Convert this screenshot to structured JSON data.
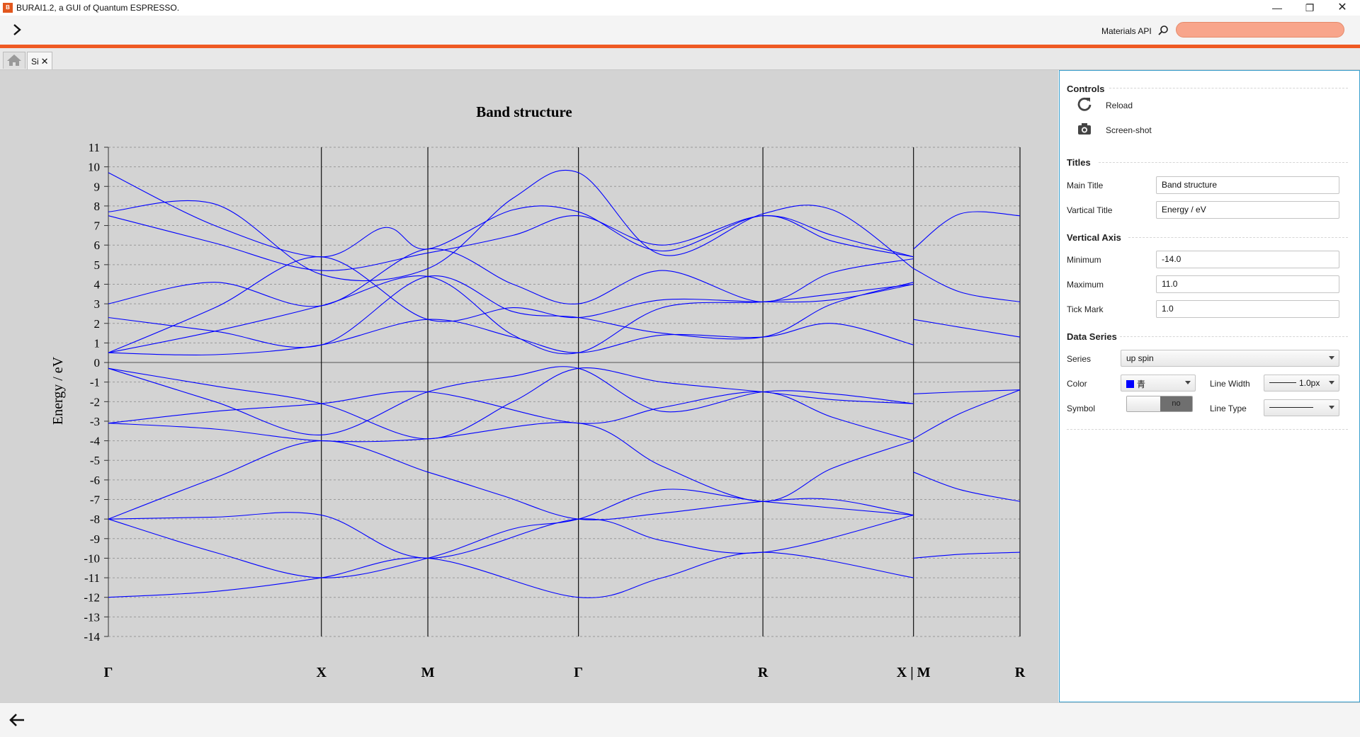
{
  "window": {
    "icon_text": "B",
    "title": "BURAI1.2, a GUI of Quantum ESPRESSO.",
    "minimize_symbol": "—",
    "maximize_symbol": "❐",
    "close_symbol": "✕"
  },
  "toolbar": {
    "materials_api_label": "Materials API",
    "search_value": ""
  },
  "tabs": {
    "project_tab_label": "Si",
    "close_symbol": "✕"
  },
  "controls": {
    "section_controls": "Controls",
    "reload_label": "Reload",
    "screenshot_label": "Screen-shot",
    "section_titles": "Titles",
    "main_title_label": "Main Title",
    "main_title_value": "Band structure",
    "vertical_title_label": "Vartical Title",
    "vertical_title_value": "Energy / eV",
    "section_vertical_axis": "Vertical Axis",
    "minimum_label": "Minimum",
    "minimum_value": "-14.0",
    "maximum_label": "Maximum",
    "maximum_value": "11.0",
    "tick_label": "Tick Mark",
    "tick_value": "1.0",
    "section_data_series": "Data Series",
    "series_label": "Series",
    "series_value": "up spin",
    "color_label": "Color",
    "color_value": "青",
    "color_hex": "#0000ff",
    "line_width_label": "Line Width",
    "line_width_value": "1.0px",
    "symbol_label": "Symbol",
    "symbol_value": "no",
    "line_type_label": "Line Type"
  },
  "chart_data": {
    "type": "line",
    "title": "Band structure",
    "ylabel": "Energy / eV",
    "xlabel": "",
    "ylim": [
      -14,
      11
    ],
    "ytick_step": 1,
    "grid": "horizontal dashed",
    "line_color": "#0000ff",
    "kpoints": [
      {
        "label": "Γ",
        "x": 0.0
      },
      {
        "label": "X",
        "x": 1.0
      },
      {
        "label": "M",
        "x": 1.5
      },
      {
        "label": "Γ",
        "x": 2.2071
      },
      {
        "label": "R",
        "x": 3.0731
      },
      {
        "label": "X | M",
        "x": 3.7802
      },
      {
        "label": "R",
        "x": 4.2802
      }
    ],
    "break_after_index": 5,
    "bands": [
      [
        [
          0,
          -12
        ],
        [
          0.5,
          -11.7
        ],
        [
          1,
          -11
        ],
        [
          1.5,
          -10
        ],
        [
          2.2071,
          -12
        ],
        [
          2.6,
          -11
        ],
        [
          3.0731,
          -9.7
        ],
        [
          3.78,
          -11
        ]
      ],
      [
        [
          0,
          -8
        ],
        [
          0.5,
          -7.9
        ],
        [
          1,
          -7.8
        ],
        [
          1.5,
          -10
        ],
        [
          2.2071,
          -8
        ],
        [
          2.6,
          -9.1
        ],
        [
          3.0731,
          -9.7
        ],
        [
          3.78,
          -7.8
        ]
      ],
      [
        [
          0,
          -8
        ],
        [
          0.5,
          -9.7
        ],
        [
          1,
          -11
        ],
        [
          1.5,
          -10
        ],
        [
          1.9,
          -8.5
        ],
        [
          2.2071,
          -8
        ],
        [
          2.6,
          -6.5
        ],
        [
          3.0731,
          -7.1
        ],
        [
          3.78,
          -7.8
        ]
      ],
      [
        [
          0,
          -8
        ],
        [
          0.5,
          -5.9
        ],
        [
          1,
          -4
        ],
        [
          1.5,
          -5.6
        ],
        [
          1.85,
          -6.8
        ],
        [
          2.2071,
          -8
        ],
        [
          2.6,
          -7.7
        ],
        [
          3.0731,
          -7.1
        ],
        [
          3.4,
          -7.0
        ],
        [
          3.78,
          -7.8
        ]
      ],
      [
        [
          0,
          -3.1
        ],
        [
          0.5,
          -3.4
        ],
        [
          1,
          -4
        ],
        [
          1.5,
          -3.9
        ],
        [
          2.2071,
          -3.1
        ],
        [
          2.6,
          -5.3
        ],
        [
          3.0731,
          -7.1
        ],
        [
          3.4,
          -5.4
        ],
        [
          3.78,
          -4
        ]
      ],
      [
        [
          0,
          -3.1
        ],
        [
          0.5,
          -2.5
        ],
        [
          1,
          -2.1
        ],
        [
          1.5,
          -1.5
        ],
        [
          2.2071,
          -3.1
        ],
        [
          2.6,
          -2.3
        ],
        [
          3.0731,
          -1.5
        ],
        [
          3.4,
          -2.8
        ],
        [
          3.78,
          -4
        ]
      ],
      [
        [
          0,
          -0.3
        ],
        [
          0.5,
          -1.2
        ],
        [
          1,
          -2.1
        ],
        [
          1.5,
          -3.9
        ],
        [
          1.9,
          -2.0
        ],
        [
          2.2071,
          -0.3
        ],
        [
          2.6,
          -1.0
        ],
        [
          3.0731,
          -1.5
        ],
        [
          3.4,
          -1.9
        ],
        [
          3.78,
          -2.1
        ]
      ],
      [
        [
          0,
          -0.3
        ],
        [
          0.5,
          -2.0
        ],
        [
          1,
          -3.7
        ],
        [
          1.5,
          -1.5
        ],
        [
          1.9,
          -0.7
        ],
        [
          2.2071,
          -0.3
        ],
        [
          2.6,
          -2.5
        ],
        [
          3.0731,
          -1.5
        ],
        [
          3.4,
          -1.6
        ],
        [
          3.78,
          -2.1
        ]
      ],
      [
        [
          0,
          0.5
        ],
        [
          0.5,
          0.4
        ],
        [
          1,
          0.9
        ],
        [
          1.5,
          2.2
        ],
        [
          1.9,
          1.3
        ],
        [
          2.2071,
          0.5
        ],
        [
          2.6,
          1.4
        ],
        [
          3.0731,
          1.3
        ],
        [
          3.4,
          2.0
        ],
        [
          3.78,
          0.9
        ]
      ],
      [
        [
          0,
          0.5
        ],
        [
          0.5,
          1.6
        ],
        [
          1,
          2.9
        ],
        [
          1.5,
          4.4
        ],
        [
          1.9,
          1.4
        ],
        [
          2.2071,
          0.5
        ],
        [
          2.6,
          2.8
        ],
        [
          3.0731,
          3.1
        ],
        [
          3.4,
          3.5
        ],
        [
          3.78,
          4.0
        ]
      ],
      [
        [
          0,
          0.5
        ],
        [
          0.5,
          2.8
        ],
        [
          1,
          5.4
        ],
        [
          1.5,
          2.2
        ],
        [
          1.9,
          2.8
        ],
        [
          2.2071,
          2.3
        ],
        [
          2.6,
          3.2
        ],
        [
          3.0731,
          3.1
        ],
        [
          3.4,
          3.2
        ],
        [
          3.78,
          4.0
        ]
      ],
      [
        [
          0,
          2.3
        ],
        [
          0.5,
          1.6
        ],
        [
          1,
          0.9
        ],
        [
          1.5,
          4.4
        ],
        [
          1.9,
          2.6
        ],
        [
          2.2071,
          2.3
        ],
        [
          2.6,
          1.5
        ],
        [
          3.0731,
          1.3
        ],
        [
          3.4,
          3.0
        ],
        [
          3.78,
          4.1
        ]
      ],
      [
        [
          0,
          3.0
        ],
        [
          0.5,
          4.1
        ],
        [
          1,
          2.9
        ],
        [
          1.5,
          5.8
        ],
        [
          1.9,
          4.0
        ],
        [
          2.2071,
          3.0
        ],
        [
          2.6,
          4.7
        ],
        [
          3.0731,
          3.1
        ],
        [
          3.4,
          4.6
        ],
        [
          3.78,
          5.3
        ]
      ],
      [
        [
          0,
          7.5
        ],
        [
          0.5,
          6.1
        ],
        [
          1,
          4.7
        ],
        [
          1.5,
          5.6
        ],
        [
          1.9,
          6.5
        ],
        [
          2.2071,
          7.5
        ],
        [
          2.6,
          6.0
        ],
        [
          3.0731,
          7.5
        ],
        [
          3.4,
          6.5
        ],
        [
          3.78,
          5.4
        ]
      ],
      [
        [
          0,
          7.7
        ],
        [
          0.5,
          8.1
        ],
        [
          1,
          4.5
        ],
        [
          1.5,
          4.8
        ],
        [
          1.9,
          8.4
        ],
        [
          2.2071,
          9.7
        ],
        [
          2.6,
          5.5
        ],
        [
          3.0731,
          7.6
        ],
        [
          3.4,
          7.8
        ],
        [
          3.78,
          4.8
        ]
      ],
      [
        [
          0,
          9.7
        ],
        [
          0.5,
          7.0
        ],
        [
          1,
          5.4
        ],
        [
          1.3,
          6.9
        ],
        [
          1.5,
          5.8
        ],
        [
          1.9,
          7.8
        ],
        [
          2.2071,
          7.7
        ],
        [
          2.6,
          5.7
        ],
        [
          3.0731,
          7.5
        ],
        [
          3.4,
          6.2
        ],
        [
          3.78,
          5.4
        ]
      ],
      [
        [
          3.7802,
          5.8
        ],
        [
          4.0,
          7.6
        ],
        [
          4.2802,
          7.5
        ]
      ],
      [
        [
          3.7802,
          4.8
        ],
        [
          4.0,
          3.6
        ],
        [
          4.2802,
          3.1
        ]
      ],
      [
        [
          3.7802,
          2.2
        ],
        [
          4.0,
          1.8
        ],
        [
          4.2802,
          1.3
        ]
      ],
      [
        [
          3.7802,
          -1.6
        ],
        [
          4.0,
          -1.5
        ],
        [
          4.2802,
          -1.4
        ]
      ],
      [
        [
          3.7802,
          -3.9
        ],
        [
          4.0,
          -2.6
        ],
        [
          4.2802,
          -1.4
        ]
      ],
      [
        [
          3.7802,
          -5.6
        ],
        [
          4.0,
          -6.5
        ],
        [
          4.2802,
          -7.1
        ]
      ],
      [
        [
          3.7802,
          -10.0
        ],
        [
          4.0,
          -9.8
        ],
        [
          4.2802,
          -9.7
        ]
      ]
    ]
  }
}
